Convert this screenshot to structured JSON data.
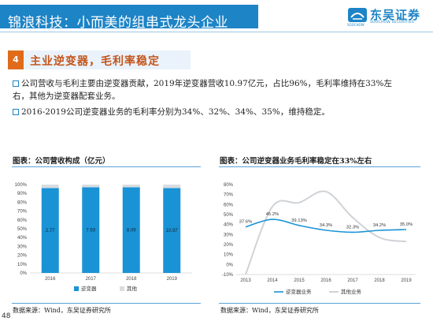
{
  "header": {
    "title": "锦浪科技：小而美的组串式龙头企业",
    "logo_name": "东吴证券",
    "logo_en": "SOOCHOW SECURITIES",
    "logo_sub": "SOOCHOW"
  },
  "section": {
    "number": "4",
    "title": "主业逆变器，毛利率稳定"
  },
  "paragraphs": [
    "公司营收与毛利主要由逆变器贡献，2019年逆变器营收10.97亿元，占比96%，毛利率维持在33%左右，其他为逆变器配套业务。",
    "2016-2019公司逆变器业务的毛利率分别为34%、32%、34%、35%，维持稳定。"
  ],
  "charts": {
    "left_title": "图表：公司营收构成（亿元）",
    "right_title": "图表：公司逆变器业务毛利率稳定在33%左右",
    "left_source": "数据来源：Wind，东吴证券研究所",
    "right_source": "数据来源：Wind，东吴证券研究所"
  },
  "page_number": "48",
  "colors": {
    "primary": "#1d84c6",
    "inverter_bar": "#1a93d6",
    "other_bar": "#d9dce0",
    "other_line": "#cfd2d6",
    "accent": "#e06b1a"
  },
  "chart_data": [
    {
      "type": "bar",
      "stacked": true,
      "percent": true,
      "categories": [
        "2016",
        "2017",
        "2018",
        "2019"
      ],
      "series": [
        {
          "name": "逆变器",
          "values": [
            96,
            97,
            97,
            96
          ],
          "labels": [
            "2.77",
            "7.93",
            "8.09",
            "10.97"
          ]
        },
        {
          "name": "其他",
          "values": [
            4,
            3,
            3,
            4
          ]
        }
      ],
      "ylim": [
        0,
        100
      ],
      "yticks": [
        "0%",
        "10%",
        "20%",
        "30%",
        "40%",
        "50%",
        "60%",
        "70%",
        "80%",
        "90%",
        "100%"
      ],
      "legend_position": "bottom"
    },
    {
      "type": "line",
      "x": [
        "2013",
        "2014",
        "2015",
        "2016",
        "2017",
        "2018",
        "2019"
      ],
      "series": [
        {
          "name": "逆变器业务",
          "values": [
            37.6,
            45.2,
            39.1,
            34.3,
            32.3,
            34.2,
            35.0
          ],
          "labels": [
            "37.6%",
            "45.2%",
            "39.13%",
            "34.3%",
            "32.3%",
            "34.2%",
            "35.0%"
          ]
        },
        {
          "name": "其他业务",
          "values": [
            -10,
            58,
            62,
            73,
            47,
            27,
            23
          ]
        }
      ],
      "ylim": [
        -10,
        80
      ],
      "yticks": [
        "-10%",
        "0%",
        "10%",
        "20%",
        "30%",
        "40%",
        "50%",
        "60%",
        "70%",
        "80%"
      ],
      "legend_position": "bottom"
    }
  ]
}
